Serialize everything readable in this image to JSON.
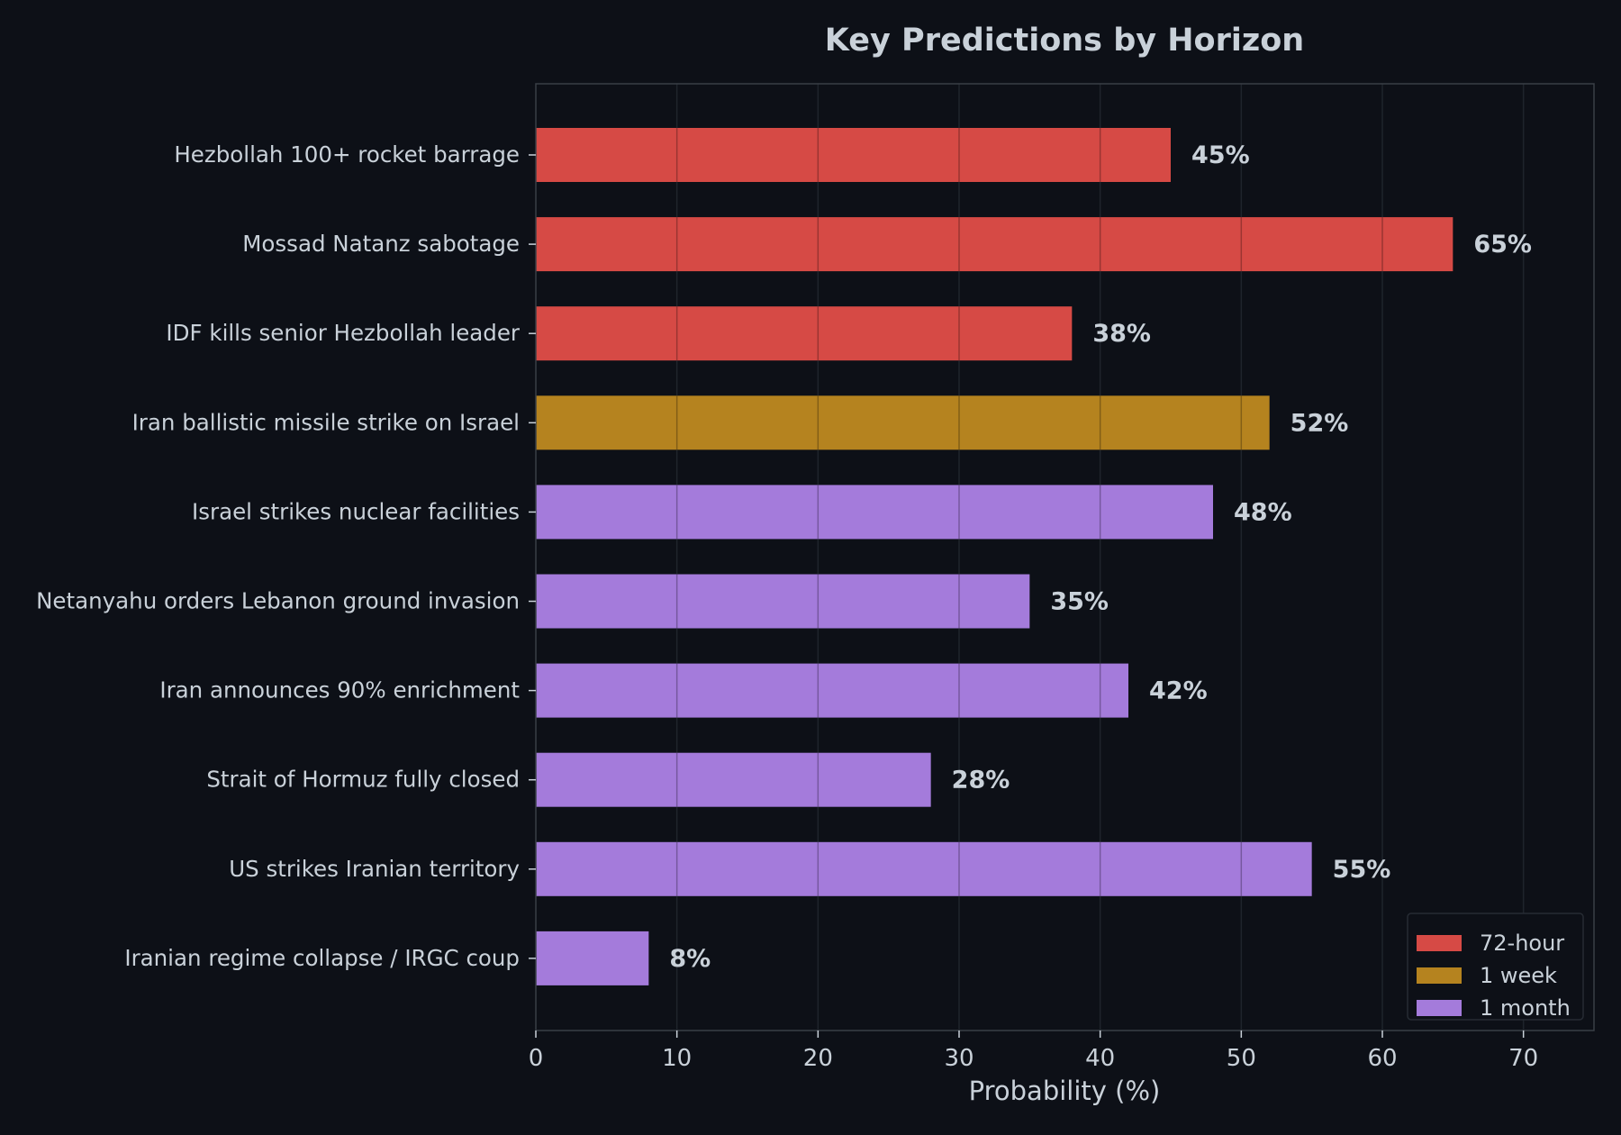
{
  "chart_data": {
    "type": "bar",
    "orientation": "horizontal",
    "title": "Key Predictions by Horizon",
    "xlabel": "Probability (%)",
    "ylabel": "",
    "xlim": [
      0,
      75
    ],
    "xticks": [
      0,
      10,
      20,
      30,
      40,
      50,
      60,
      70
    ],
    "grid": true,
    "legend_position": "lower-right",
    "legend": [
      {
        "label": "72-hour",
        "color": "#d64a45"
      },
      {
        "label": "1 week",
        "color": "#b5831f"
      },
      {
        "label": "1 month",
        "color": "#a47bdb"
      }
    ],
    "categories": [
      "Hezbollah 100+ rocket barrage",
      "Mossad Natanz sabotage",
      "IDF kills senior Hezbollah leader",
      "Iran ballistic missile strike on Israel",
      "Israel strikes nuclear facilities",
      "Netanyahu orders Lebanon ground invasion",
      "Iran announces 90% enrichment",
      "Strait of Hormuz fully closed",
      "US strikes Iranian territory",
      "Iranian regime collapse / IRGC coup"
    ],
    "values": [
      45,
      65,
      38,
      52,
      48,
      35,
      42,
      28,
      55,
      8
    ],
    "value_labels": [
      "45%",
      "65%",
      "38%",
      "52%",
      "48%",
      "35%",
      "42%",
      "28%",
      "55%",
      "8%"
    ],
    "horizon": [
      "72-hour",
      "72-hour",
      "72-hour",
      "1 week",
      "1 month",
      "1 month",
      "1 month",
      "1 month",
      "1 month",
      "1 month"
    ]
  },
  "colors": {
    "background": "#0d1017",
    "text": "#c9d1d9",
    "axis": "#3a3f47",
    "grid": "#1f242c"
  }
}
